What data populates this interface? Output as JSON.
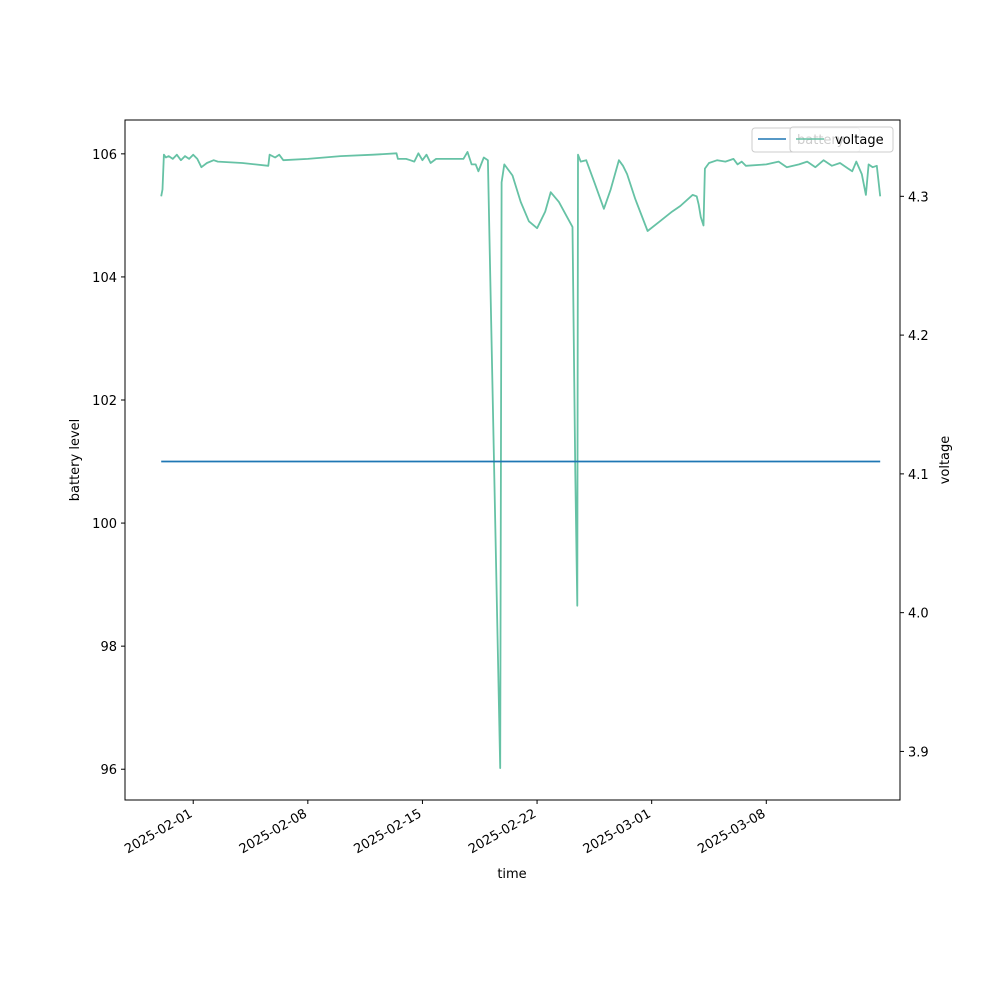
{
  "chart_data": {
    "type": "line",
    "xlabel": "time",
    "ylabel_left": "battery level",
    "ylabel_right": "voltage",
    "x_range": [
      "2025-01-27T20:00",
      "2025-03-16T04:00"
    ],
    "x_ticks": [
      "2025-02-01",
      "2025-02-08",
      "2025-02-15",
      "2025-02-22",
      "2025-03-01",
      "2025-03-08"
    ],
    "y_left_range": [
      95.5,
      106.55
    ],
    "y_left_ticks": [
      96,
      98,
      100,
      102,
      104,
      106
    ],
    "y_right_range": [
      3.865,
      4.355
    ],
    "y_right_ticks": [
      "3.9",
      "4.0",
      "4.1",
      "4.2",
      "4.3"
    ],
    "legend_position": "top-right",
    "grid": false,
    "series": [
      {
        "name": "battery",
        "axis": "left",
        "color": "#1f77b4",
        "points": [
          [
            "2025-01-30T01:00",
            101.0
          ],
          [
            "2025-03-14T23:00",
            101.0
          ]
        ]
      },
      {
        "name": "voltage",
        "axis": "right",
        "color": "#66c2a5",
        "points": [
          [
            "2025-01-30T01:00",
            4.3
          ],
          [
            "2025-01-30T03:00",
            4.305
          ],
          [
            "2025-01-30T05:00",
            4.33
          ],
          [
            "2025-01-30T08:00",
            4.328
          ],
          [
            "2025-01-30T12:00",
            4.329
          ],
          [
            "2025-01-30T18:00",
            4.327
          ],
          [
            "2025-01-31T00:00",
            4.33
          ],
          [
            "2025-01-31T06:00",
            4.326
          ],
          [
            "2025-01-31T12:00",
            4.329
          ],
          [
            "2025-01-31T18:00",
            4.327
          ],
          [
            "2025-02-01T00:00",
            4.33
          ],
          [
            "2025-02-01T06:00",
            4.327
          ],
          [
            "2025-02-01T12:00",
            4.321
          ],
          [
            "2025-02-01T20:00",
            4.324
          ],
          [
            "2025-02-02T06:00",
            4.326
          ],
          [
            "2025-02-02T12:00",
            4.325
          ],
          [
            "2025-02-04T00:00",
            4.324
          ],
          [
            "2025-02-05T14:00",
            4.322
          ],
          [
            "2025-02-05T16:00",
            4.33
          ],
          [
            "2025-02-06T00:00",
            4.328
          ],
          [
            "2025-02-06T06:00",
            4.33
          ],
          [
            "2025-02-06T12:00",
            4.326
          ],
          [
            "2025-02-08T00:00",
            4.327
          ],
          [
            "2025-02-10T00:00",
            4.329
          ],
          [
            "2025-02-12T00:00",
            4.33
          ],
          [
            "2025-02-13T10:00",
            4.331
          ],
          [
            "2025-02-13T12:00",
            4.327
          ],
          [
            "2025-02-14T00:00",
            4.327
          ],
          [
            "2025-02-14T06:00",
            4.326
          ],
          [
            "2025-02-14T12:00",
            4.325
          ],
          [
            "2025-02-14T18:00",
            4.331
          ],
          [
            "2025-02-15T00:00",
            4.326
          ],
          [
            "2025-02-15T06:00",
            4.33
          ],
          [
            "2025-02-15T12:00",
            4.324
          ],
          [
            "2025-02-15T20:00",
            4.327
          ],
          [
            "2025-02-16T10:00",
            4.327
          ],
          [
            "2025-02-17T12:00",
            4.327
          ],
          [
            "2025-02-17T18:00",
            4.332
          ],
          [
            "2025-02-18T00:00",
            4.323
          ],
          [
            "2025-02-18T06:00",
            4.323
          ],
          [
            "2025-02-18T10:00",
            4.318
          ],
          [
            "2025-02-18T18:00",
            4.328
          ],
          [
            "2025-02-19T00:00",
            4.326
          ],
          [
            "2025-02-19T18:00",
            3.888
          ],
          [
            "2025-02-19T20:00",
            4.31
          ],
          [
            "2025-02-20T00:00",
            4.323
          ],
          [
            "2025-02-20T12:00",
            4.315
          ],
          [
            "2025-02-21T00:00",
            4.296
          ],
          [
            "2025-02-21T12:00",
            4.282
          ],
          [
            "2025-02-22T00:00",
            4.277
          ],
          [
            "2025-02-22T12:00",
            4.289
          ],
          [
            "2025-02-22T20:00",
            4.303
          ],
          [
            "2025-02-23T08:00",
            4.296
          ],
          [
            "2025-02-23T20:00",
            4.285
          ],
          [
            "2025-02-24T04:00",
            4.278
          ],
          [
            "2025-02-24T08:00",
            4.1
          ],
          [
            "2025-02-24T11:00",
            4.005
          ],
          [
            "2025-02-24T12:00",
            4.33
          ],
          [
            "2025-02-24T16:00",
            4.325
          ],
          [
            "2025-02-25T00:00",
            4.326
          ],
          [
            "2025-02-25T12:00",
            4.31
          ],
          [
            "2025-02-26T02:00",
            4.291
          ],
          [
            "2025-02-26T12:00",
            4.305
          ],
          [
            "2025-02-27T00:00",
            4.326
          ],
          [
            "2025-02-27T06:00",
            4.322
          ],
          [
            "2025-02-27T12:00",
            4.316
          ],
          [
            "2025-02-28T00:00",
            4.298
          ],
          [
            "2025-02-28T18:00",
            4.275
          ],
          [
            "2025-03-01T12:00",
            4.282
          ],
          [
            "2025-03-02T06:00",
            4.289
          ],
          [
            "2025-03-02T18:00",
            4.293
          ],
          [
            "2025-03-03T12:00",
            4.301
          ],
          [
            "2025-03-03T18:00",
            4.3
          ],
          [
            "2025-03-03T21:00",
            4.294
          ],
          [
            "2025-03-04T00:00",
            4.285
          ],
          [
            "2025-03-04T04:00",
            4.279
          ],
          [
            "2025-03-04T06:00",
            4.32
          ],
          [
            "2025-03-04T12:00",
            4.324
          ],
          [
            "2025-03-05T00:00",
            4.326
          ],
          [
            "2025-03-05T12:00",
            4.325
          ],
          [
            "2025-03-06T00:00",
            4.327
          ],
          [
            "2025-03-06T06:00",
            4.323
          ],
          [
            "2025-03-06T12:00",
            4.325
          ],
          [
            "2025-03-06T18:00",
            4.322
          ],
          [
            "2025-03-08T00:00",
            4.323
          ],
          [
            "2025-03-08T18:00",
            4.325
          ],
          [
            "2025-03-09T06:00",
            4.321
          ],
          [
            "2025-03-10T00:00",
            4.323
          ],
          [
            "2025-03-10T12:00",
            4.325
          ],
          [
            "2025-03-11T00:00",
            4.321
          ],
          [
            "2025-03-11T12:00",
            4.326
          ],
          [
            "2025-03-12T00:00",
            4.322
          ],
          [
            "2025-03-12T12:00",
            4.324
          ],
          [
            "2025-03-13T00:00",
            4.32
          ],
          [
            "2025-03-13T06:00",
            4.318
          ],
          [
            "2025-03-13T12:00",
            4.325
          ],
          [
            "2025-03-13T20:00",
            4.316
          ],
          [
            "2025-03-14T02:00",
            4.301
          ],
          [
            "2025-03-14T06:00",
            4.323
          ],
          [
            "2025-03-14T12:00",
            4.321
          ],
          [
            "2025-03-14T18:00",
            4.322
          ],
          [
            "2025-03-14T23:00",
            4.3
          ]
        ]
      }
    ]
  }
}
